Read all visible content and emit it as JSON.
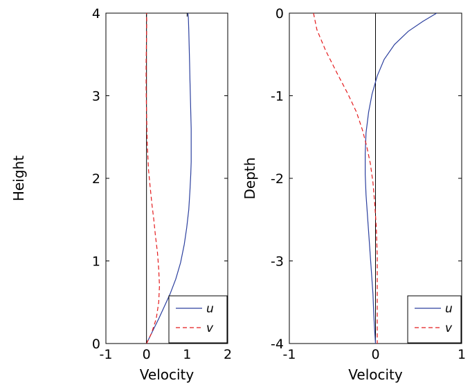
{
  "chart_data": [
    {
      "type": "line",
      "xlabel": "Velocity",
      "ylabel": "Height",
      "xlim": [
        -1,
        2
      ],
      "ylim": [
        0,
        4
      ],
      "xticks": [
        -1,
        0,
        1,
        2
      ],
      "yticks": [
        0,
        1,
        2,
        3,
        4
      ],
      "xtick_labels": [
        "-1",
        "0",
        "1",
        "2"
      ],
      "ytick_labels": [
        "0",
        "1",
        "2",
        "3",
        "4"
      ],
      "grid": false,
      "legend_position": "bottom-right",
      "zero_line": "vertical at x=0",
      "series": [
        {
          "name": "u",
          "color": "#2b3f9e",
          "dash": "solid",
          "x": [
            0,
            0.08,
            0.18,
            0.3,
            0.44,
            0.58,
            0.72,
            0.84,
            0.93,
            0.99,
            1.04,
            1.07,
            1.09,
            1.1,
            1.1,
            1.1,
            1.09,
            1.08,
            1.07,
            1.06,
            1.05,
            1.04,
            1.03,
            1.02
          ],
          "y": [
            0,
            0.08,
            0.18,
            0.3,
            0.45,
            0.6,
            0.78,
            0.98,
            1.2,
            1.4,
            1.62,
            1.85,
            2.05,
            2.2,
            2.4,
            2.6,
            2.8,
            3.0,
            3.2,
            3.4,
            3.6,
            3.8,
            3.95,
            4.0
          ]
        },
        {
          "name": "v",
          "color": "#e41a1c",
          "dash": "dashed",
          "x": [
            0,
            0.12,
            0.24,
            0.3,
            0.32,
            0.3,
            0.27,
            0.22,
            0.18,
            0.13,
            0.09,
            0.05,
            0.02,
            0.0,
            -0.01,
            -0.01,
            0.0,
            0.005,
            0.0
          ],
          "y": [
            0,
            0.12,
            0.3,
            0.5,
            0.7,
            0.9,
            1.1,
            1.3,
            1.5,
            1.7,
            1.9,
            2.1,
            2.4,
            2.8,
            3.1,
            3.4,
            3.7,
            3.9,
            4.0
          ]
        }
      ]
    },
    {
      "type": "line",
      "xlabel": "Velocity",
      "ylabel": "Depth",
      "xlim": [
        -1,
        1
      ],
      "ylim": [
        -4,
        0
      ],
      "xticks": [
        -1,
        0,
        1
      ],
      "yticks": [
        -4,
        -3,
        -2,
        -1,
        0
      ],
      "xtick_labels": [
        "-1",
        "0",
        "1"
      ],
      "ytick_labels": [
        "-4",
        "-3",
        "-2",
        "-1",
        "0"
      ],
      "grid": false,
      "legend_position": "bottom-right",
      "zero_line": "vertical at x=0",
      "series": [
        {
          "name": "u",
          "color": "#2b3f9e",
          "dash": "solid",
          "x": [
            0.71,
            0.55,
            0.38,
            0.22,
            0.1,
            0.02,
            -0.04,
            -0.08,
            -0.11,
            -0.12,
            -0.12,
            -0.11,
            -0.09,
            -0.07,
            -0.05,
            -0.03,
            -0.02,
            -0.01,
            0.0
          ],
          "y": [
            0.0,
            -0.1,
            -0.22,
            -0.38,
            -0.56,
            -0.76,
            -0.98,
            -1.2,
            -1.45,
            -1.7,
            -1.95,
            -2.2,
            -2.5,
            -2.8,
            -3.1,
            -3.4,
            -3.65,
            -3.85,
            -4.0
          ]
        },
        {
          "name": "v",
          "color": "#e41a1c",
          "dash": "dashed",
          "x": [
            -0.72,
            -0.68,
            -0.58,
            -0.45,
            -0.32,
            -0.22,
            -0.15,
            -0.1,
            -0.06,
            -0.03,
            -0.01,
            0.01,
            0.02,
            0.02,
            0.02,
            0.02
          ],
          "y": [
            0.0,
            -0.2,
            -0.45,
            -0.72,
            -0.98,
            -1.2,
            -1.42,
            -1.62,
            -1.82,
            -2.05,
            -2.3,
            -2.6,
            -2.95,
            -3.3,
            -3.65,
            -4.0
          ]
        }
      ]
    }
  ]
}
